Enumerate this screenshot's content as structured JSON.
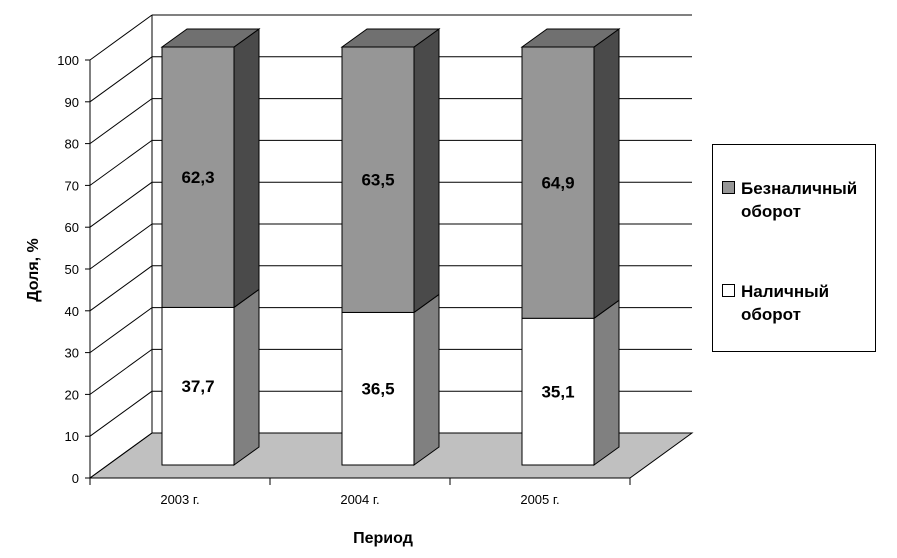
{
  "chart_data": {
    "type": "bar",
    "stacked": true,
    "three_d": true,
    "categories": [
      "2003 г.",
      "2004 г.",
      "2005 г."
    ],
    "series": [
      {
        "name": "Наличный оборот",
        "values": [
          37.7,
          36.5,
          35.1
        ],
        "labels": [
          "37,7",
          "36,5",
          "35,1"
        ],
        "color": "#ffffff",
        "side_color": "#808080",
        "top_color": "#ffffff"
      },
      {
        "name": "Безналичный оборот",
        "values": [
          62.3,
          63.5,
          64.9
        ],
        "labels": [
          "62,3",
          "63,5",
          "64,9"
        ],
        "color": "#969696",
        "side_color": "#4a4a4a",
        "top_color": "#707070"
      }
    ],
    "xlabel": "Период",
    "ylabel": "Доля, %",
    "ylim": [
      0,
      100
    ],
    "yticks": [
      "0",
      "10",
      "20",
      "30",
      "40",
      "50",
      "60",
      "70",
      "80",
      "90",
      "100"
    ],
    "grid": true,
    "legend_position": "right",
    "floor_color": "#c0c0c0",
    "legend_order": [
      1,
      0
    ]
  }
}
